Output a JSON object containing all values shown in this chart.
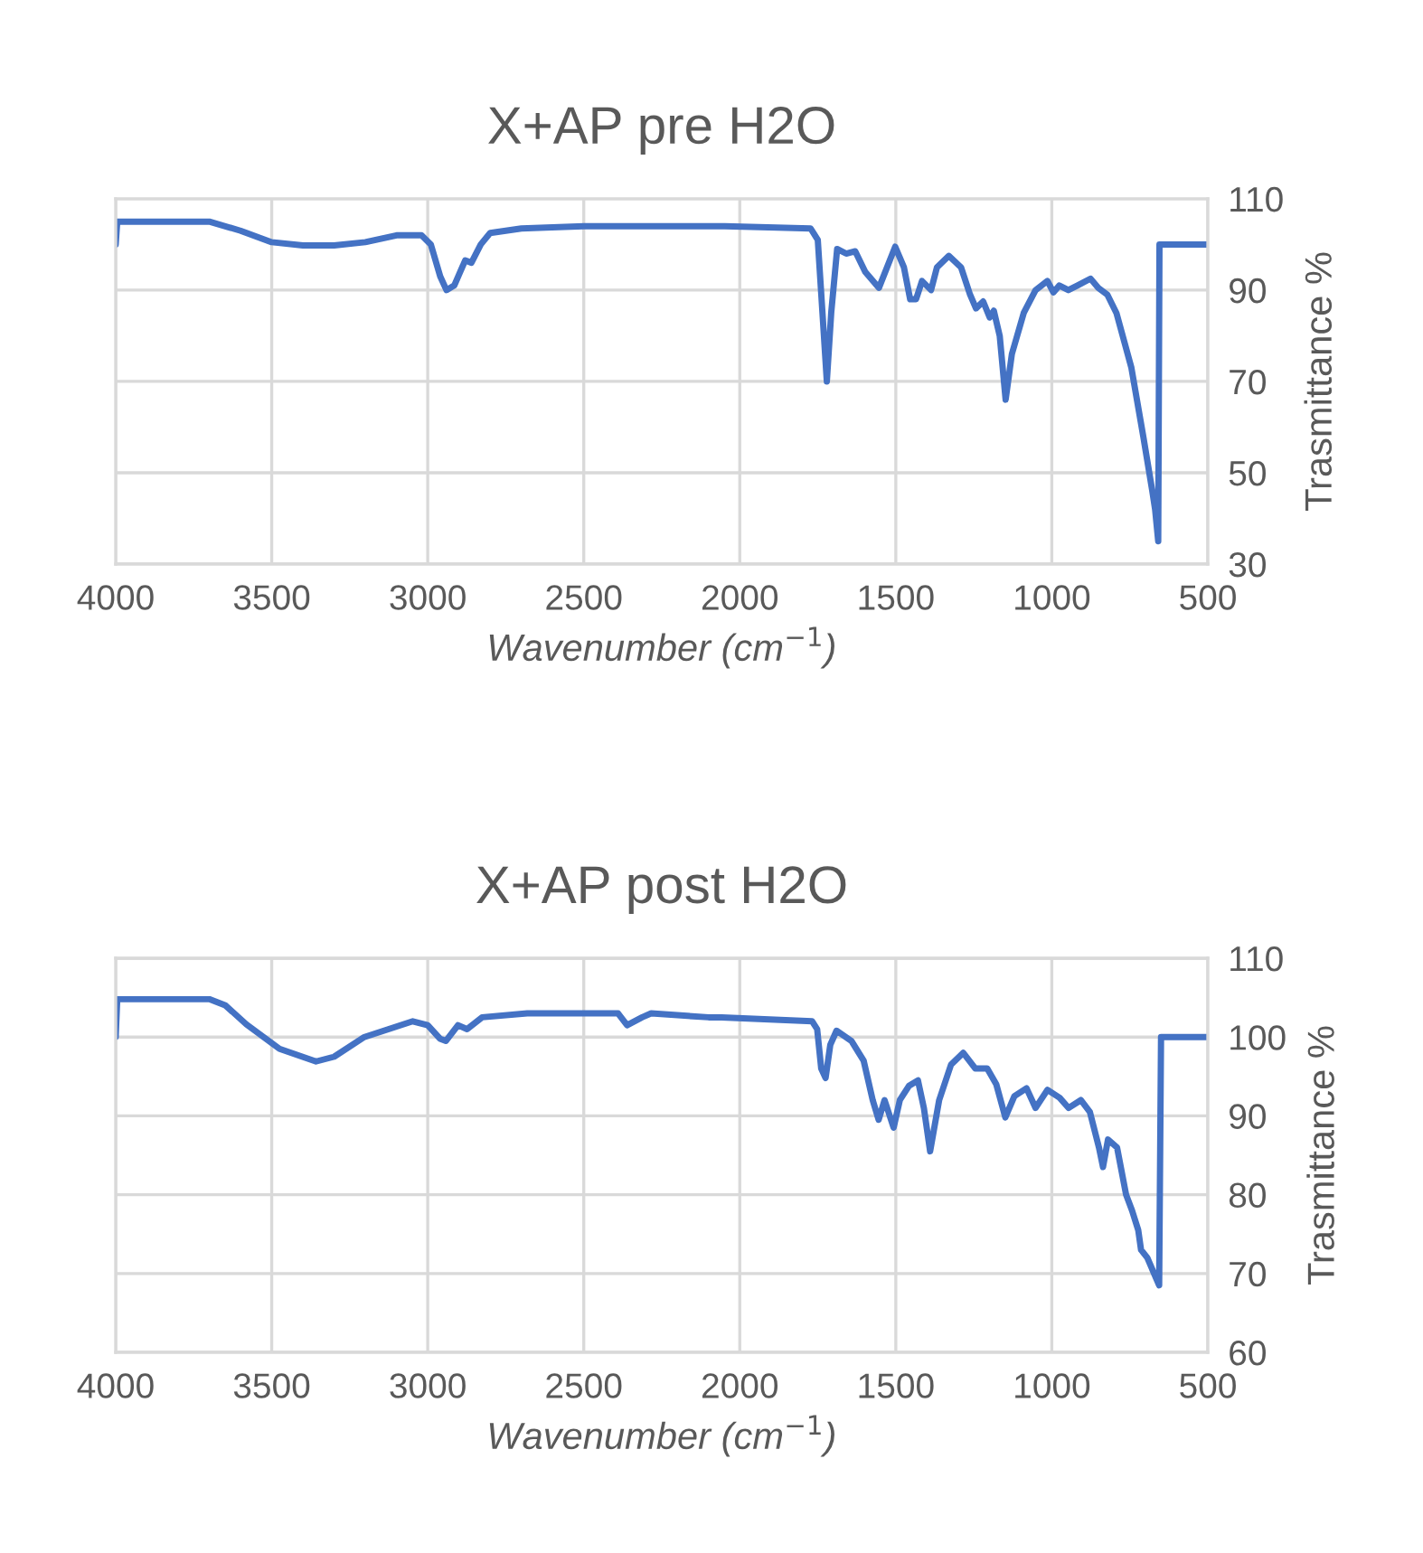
{
  "chart_data": [
    {
      "type": "line",
      "title": "X+AP pre H2O",
      "xlabel": "Wavenumber (cm$^{−1}$)",
      "ylabel": "Trasmittance %",
      "xlim": [
        4000,
        500
      ],
      "xticks": [
        4000,
        3500,
        3000,
        2500,
        2000,
        1500,
        1000,
        500
      ],
      "ylim": [
        30,
        110
      ],
      "yticks": [
        30,
        50,
        70,
        90,
        110
      ],
      "grid": true,
      "legend": false,
      "marker": "none",
      "line_style": "solid",
      "series": [
        {
          "color": "#4472c4",
          "x": [
            4000,
            3995,
            3700,
            3600,
            3500,
            3400,
            3300,
            3200,
            3100,
            3020,
            2990,
            2960,
            2940,
            2915,
            2880,
            2860,
            2830,
            2800,
            2700,
            2500,
            2300,
            2048,
            1773,
            1750,
            1735,
            1721,
            1707,
            1688,
            1659,
            1630,
            1598,
            1554,
            1502,
            1474,
            1454,
            1435,
            1416,
            1387,
            1368,
            1330,
            1291,
            1262,
            1243,
            1220,
            1199,
            1186,
            1167,
            1148,
            1128,
            1090,
            1052,
            1014,
            995,
            976,
            947,
            918,
            876,
            851,
            822,
            793,
            745,
            707,
            678,
            669,
            659,
            655,
            500
          ],
          "values": [
            100,
            105,
            105,
            103,
            100.5,
            99.8,
            99.8,
            100.5,
            102,
            102,
            100,
            93,
            90,
            91,
            96.5,
            96,
            100,
            102.5,
            103.5,
            104,
            104,
            104,
            103.5,
            101,
            85,
            70,
            85,
            99,
            98,
            98.5,
            94,
            90.5,
            99.5,
            95,
            88,
            88,
            92,
            90,
            95,
            97.5,
            95,
            89,
            86,
            87.5,
            84,
            85.5,
            80,
            66,
            76,
            85,
            90,
            92,
            89.5,
            91,
            90,
            91,
            92.5,
            90.5,
            89,
            85,
            73,
            58,
            46,
            42,
            35,
            100,
            100
          ]
        }
      ]
    },
    {
      "type": "line",
      "title": "X+AP post H2O",
      "xlabel": "Wavenumber (cm$^{−1}$)",
      "ylabel": "Trasmittance %",
      "xlim": [
        4000,
        500
      ],
      "xticks": [
        4000,
        3500,
        3000,
        2500,
        2000,
        1500,
        1000,
        500
      ],
      "ylim": [
        60,
        110
      ],
      "yticks": [
        60,
        70,
        80,
        90,
        100,
        110
      ],
      "grid": true,
      "legend": false,
      "marker": "none",
      "line_style": "solid",
      "series": [
        {
          "color": "#4472c4",
          "x": [
            4000,
            3995,
            3700,
            3648,
            3581,
            3475,
            3358,
            3300,
            3203,
            3048,
            3000,
            2961,
            2942,
            2903,
            2874,
            2826,
            2681,
            2390,
            2361,
            2313,
            2284,
            2100,
            2058,
            1768,
            1752,
            1739,
            1725,
            1710,
            1690,
            1642,
            1603,
            1574,
            1555,
            1536,
            1507,
            1487,
            1458,
            1429,
            1410,
            1390,
            1361,
            1323,
            1284,
            1245,
            1207,
            1178,
            1149,
            1120,
            1081,
            1052,
            1014,
            975,
            946,
            907,
            878,
            849,
            836,
            820,
            791,
            762,
            743,
            723,
            714,
            694,
            656,
            650,
            500
          ],
          "values": [
            100,
            104.8,
            104.8,
            104,
            101.6,
            98.5,
            96.9,
            97.5,
            100,
            102,
            101.5,
            99.8,
            99.5,
            101.5,
            101,
            102.5,
            103,
            103,
            101.5,
            102.5,
            103,
            102.5,
            102.5,
            102,
            101,
            96,
            94.8,
            99,
            100.8,
            99.5,
            97,
            92,
            89.5,
            92,
            88.5,
            92,
            93.8,
            94.5,
            91,
            85.5,
            92,
            96.5,
            98,
            96,
            96,
            94,
            89.8,
            92.5,
            93.5,
            91,
            93.3,
            92.3,
            91,
            92,
            90.5,
            86,
            83.5,
            87,
            86,
            80,
            78,
            75.5,
            73,
            72,
            68.5,
            100,
            100
          ]
        }
      ]
    }
  ]
}
